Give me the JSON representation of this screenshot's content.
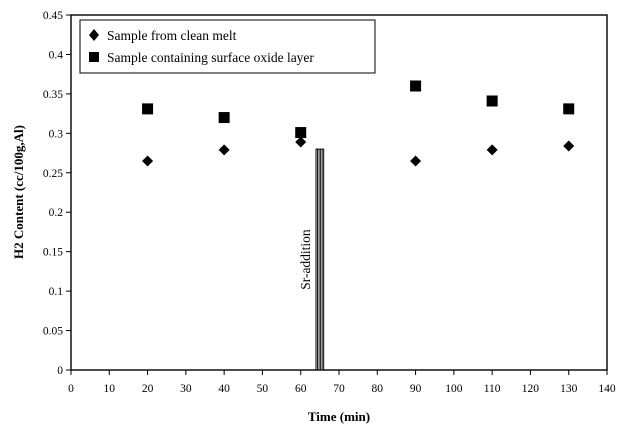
{
  "chart_data": {
    "type": "scatter",
    "title": "",
    "xlabel": "Time (min)",
    "ylabel": "H2 Content (cc/100g,Al)",
    "xlim": [
      0,
      140
    ],
    "ylim": [
      0,
      0.45
    ],
    "x_ticks": [
      0,
      10,
      20,
      30,
      40,
      50,
      60,
      70,
      80,
      90,
      100,
      110,
      120,
      130,
      140
    ],
    "y_ticks": [
      0,
      0.05,
      0.1,
      0.15,
      0.2,
      0.25,
      0.3,
      0.35,
      0.4,
      0.45
    ],
    "x_tick_labels": [
      "0",
      "10",
      "20",
      "30",
      "40",
      "50",
      "60",
      "70",
      "80",
      "90",
      "100",
      "110",
      "120",
      "130",
      "140"
    ],
    "y_tick_labels": [
      "0",
      "0.05",
      "0.1",
      "0.15",
      "0.2",
      "0.25",
      "0.3",
      "0.35",
      "0.4",
      "0.45"
    ],
    "grid": false,
    "legend_position": "top-left",
    "series": [
      {
        "name": "Sample from clean melt",
        "marker": "diamond",
        "color": "#000000",
        "x": [
          20,
          40,
          60,
          90,
          110,
          130
        ],
        "y": [
          0.265,
          0.279,
          0.289,
          0.265,
          0.279,
          0.284
        ]
      },
      {
        "name": "Sample containing surface oxide layer",
        "marker": "square",
        "color": "#000000",
        "x": [
          20,
          40,
          60,
          90,
          110,
          130
        ],
        "y": [
          0.331,
          0.32,
          0.301,
          0.36,
          0.341,
          0.331
        ]
      }
    ],
    "annotations": [
      {
        "text": "Sr-addition",
        "x_range": [
          64,
          66
        ],
        "y_top": 0.28,
        "orientation": "vertical"
      }
    ]
  }
}
